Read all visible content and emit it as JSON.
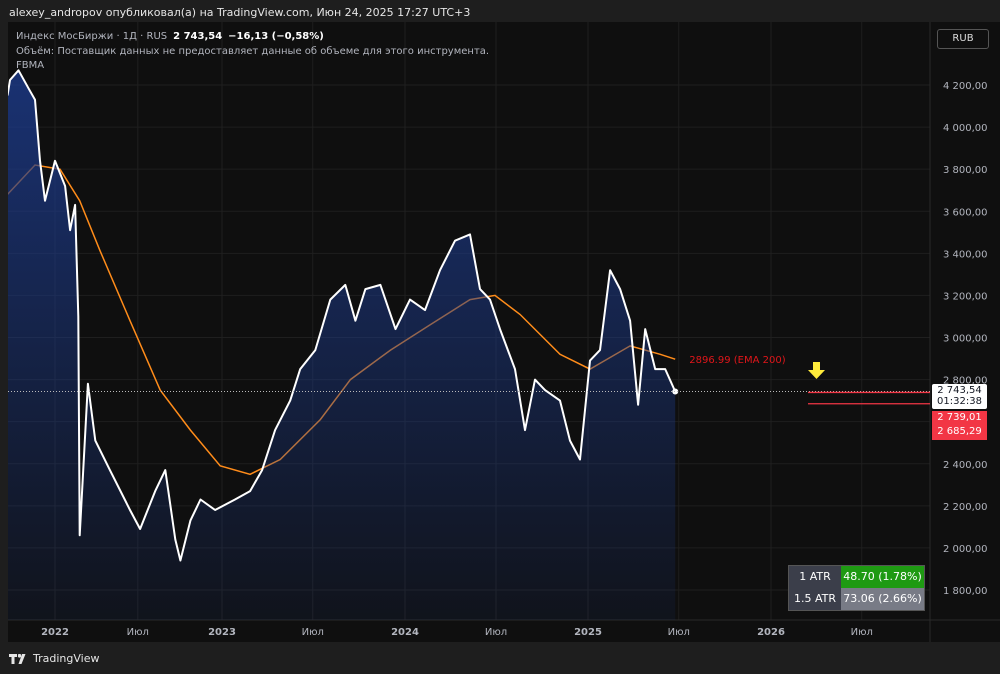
{
  "header": {
    "published": "alexey_andropov опубликовал(а) на TradingView.com, Июн 24, 2025 17:27 UTC+3"
  },
  "legend": {
    "symbol": "Индекс МосБиржи · 1Д · RUS",
    "price": "2 743,54",
    "change": "−16,13 (−0,58%)",
    "volume_note": "Объём: Поставщик данных не предоставляет данные об объеме для этого инструмента.",
    "indicator": "FBMA"
  },
  "currency_button": "RUB",
  "footer": {
    "brand": "TradingView"
  },
  "atr_table": [
    {
      "label": "1 ATR",
      "value": "48.70 (1.78%)",
      "color": "#1e9a12"
    },
    {
      "label": "1.5 ATR",
      "value": "73.06 (2.66%)",
      "color": "#787b86"
    }
  ],
  "price_tags": {
    "last": "2 743,54",
    "countdown": "01:32:38",
    "level1": "2 739,01",
    "level2": "2 685,29"
  },
  "colors": {
    "price_line": "#ffffff",
    "area": "#1c3a8a",
    "ema": "#ff8c1a",
    "levels": "#f23645",
    "arrow": "#ffeb3b"
  },
  "icons": {
    "marker": "yellow-down-arrow-icon",
    "logo": "tradingview-logo-icon"
  },
  "chart_data": {
    "type": "area",
    "ylim": [
      1700,
      4300
    ],
    "y_ticks": [
      1800,
      2000,
      2200,
      2400,
      2800,
      3000,
      3200,
      3400,
      3600,
      3800,
      4000,
      4200
    ],
    "y_tick_labels": [
      "1 800,00",
      "2 000,00",
      "2 200,00",
      "2 400,00",
      "2 800,00",
      "3 000,00",
      "3 200,00",
      "3 400,00",
      "3 600,00",
      "3 800,00",
      "4 000,00",
      "4 200,00"
    ],
    "x_ticks": [
      {
        "date": "2022-01-01",
        "label": "2022",
        "bold": true
      },
      {
        "date": "2022-07-01",
        "label": "Июл",
        "bold": false
      },
      {
        "date": "2023-01-01",
        "label": "2023",
        "bold": true
      },
      {
        "date": "2023-07-01",
        "label": "Июл",
        "bold": false
      },
      {
        "date": "2024-01-01",
        "label": "2024",
        "bold": true
      },
      {
        "date": "2024-07-01",
        "label": "Июл",
        "bold": false
      },
      {
        "date": "2025-01-01",
        "label": "2025",
        "bold": true
      },
      {
        "date": "2025-07-01",
        "label": "Июл",
        "bold": false
      },
      {
        "date": "2026-01-01",
        "label": "2026",
        "bold": true
      },
      {
        "date": "2026-07-01",
        "label": "Июл",
        "bold": false
      }
    ],
    "grid": true,
    "series": [
      {
        "name": "Индекс МосБиржи",
        "values": [
          [
            "2021-09-28",
            4150
          ],
          [
            "2021-10-03",
            4224
          ],
          [
            "2021-10-20",
            4270
          ],
          [
            "2021-11-10",
            4180
          ],
          [
            "2021-11-22",
            4130
          ],
          [
            "2021-12-02",
            3840
          ],
          [
            "2021-12-12",
            3650
          ],
          [
            "2022-01-01",
            3840
          ],
          [
            "2022-01-23",
            3720
          ],
          [
            "2022-02-03",
            3510
          ],
          [
            "2022-02-14",
            3630
          ],
          [
            "2022-02-21",
            3100
          ],
          [
            "2022-02-24",
            2060
          ],
          [
            "2022-03-14",
            2780
          ],
          [
            "2022-03-30",
            2510
          ],
          [
            "2022-05-01",
            2370
          ],
          [
            "2022-06-14",
            2180
          ],
          [
            "2022-07-06",
            2090
          ],
          [
            "2022-08-08",
            2270
          ],
          [
            "2022-08-30",
            2370
          ],
          [
            "2022-09-21",
            2040
          ],
          [
            "2022-10-02",
            1940
          ],
          [
            "2022-10-24",
            2130
          ],
          [
            "2022-11-15",
            2230
          ],
          [
            "2022-12-17",
            2180
          ],
          [
            "2023-01-27",
            2230
          ],
          [
            "2023-02-26",
            2270
          ],
          [
            "2023-03-22",
            2370
          ],
          [
            "2023-04-17",
            2560
          ],
          [
            "2023-05-17",
            2700
          ],
          [
            "2023-06-06",
            2850
          ],
          [
            "2023-07-06",
            2940
          ],
          [
            "2023-08-05",
            3180
          ],
          [
            "2023-09-04",
            3250
          ],
          [
            "2023-09-24",
            3080
          ],
          [
            "2023-10-14",
            3230
          ],
          [
            "2023-11-13",
            3250
          ],
          [
            "2023-12-13",
            3040
          ],
          [
            "2024-01-11",
            3180
          ],
          [
            "2024-02-10",
            3130
          ],
          [
            "2024-03-11",
            3320
          ],
          [
            "2024-04-10",
            3460
          ],
          [
            "2024-05-10",
            3490
          ],
          [
            "2024-05-30",
            3230
          ],
          [
            "2024-06-19",
            3180
          ],
          [
            "2024-07-09",
            3040
          ],
          [
            "2024-08-08",
            2850
          ],
          [
            "2024-08-28",
            2560
          ],
          [
            "2024-09-17",
            2800
          ],
          [
            "2024-10-07",
            2750
          ],
          [
            "2024-11-06",
            2700
          ],
          [
            "2024-11-26",
            2510
          ],
          [
            "2024-12-16",
            2420
          ],
          [
            "2025-01-05",
            2890
          ],
          [
            "2025-01-25",
            2940
          ],
          [
            "2025-02-14",
            3320
          ],
          [
            "2025-03-06",
            3230
          ],
          [
            "2025-03-26",
            3080
          ],
          [
            "2025-04-11",
            2680
          ],
          [
            "2025-04-25",
            3040
          ],
          [
            "2025-05-15",
            2850
          ],
          [
            "2025-06-04",
            2850
          ],
          [
            "2025-06-24",
            2743.54
          ]
        ]
      },
      {
        "name": "EMA 200",
        "label": "2896.99 (EMA 200)",
        "values": [
          [
            "2021-09-28",
            3680
          ],
          [
            "2021-11-22",
            3820
          ],
          [
            "2022-01-12",
            3800
          ],
          [
            "2022-02-24",
            3650
          ],
          [
            "2022-04-09",
            3415
          ],
          [
            "2022-06-14",
            3080
          ],
          [
            "2022-08-19",
            2750
          ],
          [
            "2022-10-24",
            2560
          ],
          [
            "2022-12-28",
            2390
          ],
          [
            "2023-02-26",
            2350
          ],
          [
            "2023-04-27",
            2420
          ],
          [
            "2023-07-16",
            2610
          ],
          [
            "2023-09-14",
            2800
          ],
          [
            "2023-12-03",
            2940
          ],
          [
            "2024-02-20",
            3060
          ],
          [
            "2024-05-10",
            3180
          ],
          [
            "2024-06-29",
            3200
          ],
          [
            "2024-08-18",
            3110
          ],
          [
            "2024-11-06",
            2920
          ],
          [
            "2025-01-05",
            2850
          ],
          [
            "2025-03-26",
            2960
          ],
          [
            "2025-05-25",
            2920
          ],
          [
            "2025-06-24",
            2896.99
          ]
        ]
      }
    ],
    "horizontal_levels": [
      2739.01,
      2685.29
    ],
    "last_price": 2743.54
  }
}
